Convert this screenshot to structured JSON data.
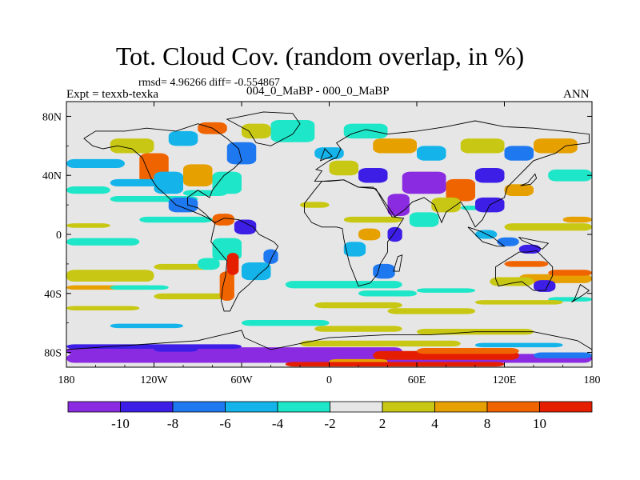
{
  "title": "Tot. Cloud Cov. (random overlap, in %)",
  "stats": "rmsd= 4.96266 diff= -0.554867",
  "left_label": "Expt = texxb-texka",
  "center_label": "004_0_MaBP - 000_0_MaBP",
  "right_label": "ANN",
  "map": {
    "lon_ticks": [
      {
        "lon": -180,
        "label": "180"
      },
      {
        "lon": -120,
        "label": "120W"
      },
      {
        "lon": -60,
        "label": "60W"
      },
      {
        "lon": 0,
        "label": "0"
      },
      {
        "lon": 60,
        "label": "60E"
      },
      {
        "lon": 120,
        "label": "120E"
      },
      {
        "lon": 180,
        "label": "180"
      }
    ],
    "lat_ticks": [
      {
        "lat": 80,
        "label": "80N"
      },
      {
        "lat": 40,
        "label": "40N"
      },
      {
        "lat": 0,
        "label": "0"
      },
      {
        "lat": -40,
        "label": "40S"
      },
      {
        "lat": -80,
        "label": "80S"
      }
    ],
    "lat_range": [
      -90,
      90
    ],
    "lon_range": [
      -180,
      180
    ],
    "background_color": "#e6e6e6"
  },
  "colorbar": {
    "colors": [
      "#8a2be2",
      "#3c1ee6",
      "#1e78f0",
      "#14b4eb",
      "#1ee6c8",
      "#e6e6e6",
      "#c8c814",
      "#e6a000",
      "#f06400",
      "#e61e00"
    ],
    "labels": [
      "-10",
      "-8",
      "-6",
      "-4",
      "-2",
      "2",
      "4",
      "8",
      "10"
    ]
  },
  "fields": [
    {
      "lon": -180,
      "lat": -84,
      "w": 360,
      "h": 6,
      "level": 1
    },
    {
      "lon": -180,
      "lat": -79,
      "w": 230,
      "h": 5,
      "level": 1
    },
    {
      "lon": -180,
      "lat": -76,
      "w": 120,
      "h": 3,
      "level": 2
    },
    {
      "lon": -120,
      "lat": -78,
      "w": 30,
      "h": 3,
      "level": 2
    },
    {
      "lon": 30,
      "lat": -82,
      "w": 100,
      "h": 6,
      "level": 10
    },
    {
      "lon": 60,
      "lat": -79,
      "w": 70,
      "h": 4,
      "level": 9
    },
    {
      "lon": 0,
      "lat": -86,
      "w": 40,
      "h": 3,
      "level": 8
    },
    {
      "lon": -30,
      "lat": -88,
      "w": 150,
      "h": 3,
      "level": 10
    },
    {
      "lon": -20,
      "lat": -74,
      "w": 110,
      "h": 4,
      "level": 7
    },
    {
      "lon": 100,
      "lat": -75,
      "w": 60,
      "h": 3,
      "level": 4
    },
    {
      "lon": 140,
      "lat": -82,
      "w": 40,
      "h": 4,
      "level": 3
    },
    {
      "lon": -10,
      "lat": -64,
      "w": 60,
      "h": 4,
      "level": 7
    },
    {
      "lon": 60,
      "lat": -66,
      "w": 80,
      "h": 4,
      "level": 7
    },
    {
      "lon": -150,
      "lat": -62,
      "w": 50,
      "h": 3,
      "level": 4
    },
    {
      "lon": -180,
      "lat": -28,
      "w": 60,
      "h": 8,
      "level": 7
    },
    {
      "lon": -180,
      "lat": -36,
      "w": 60,
      "h": 3,
      "level": 8
    },
    {
      "lon": -120,
      "lat": -22,
      "w": 40,
      "h": 4,
      "level": 7
    },
    {
      "lon": 130,
      "lat": -30,
      "w": 50,
      "h": 6,
      "level": 8
    },
    {
      "lon": 110,
      "lat": -32,
      "w": 30,
      "h": 6,
      "level": 7
    },
    {
      "lon": 150,
      "lat": -26,
      "w": 30,
      "h": 4,
      "level": 9
    },
    {
      "lon": 120,
      "lat": -20,
      "w": 30,
      "h": 4,
      "level": 9
    },
    {
      "lon": 150,
      "lat": -44,
      "w": 30,
      "h": 3,
      "level": 5
    },
    {
      "lon": 100,
      "lat": -46,
      "w": 60,
      "h": 3,
      "level": 7
    },
    {
      "lon": -120,
      "lat": -42,
      "w": 50,
      "h": 4,
      "level": 7
    },
    {
      "lon": -180,
      "lat": -50,
      "w": 50,
      "h": 3,
      "level": 7
    },
    {
      "lon": -30,
      "lat": -34,
      "w": 80,
      "h": 5,
      "level": 5
    },
    {
      "lon": -10,
      "lat": -48,
      "w": 60,
      "h": 4,
      "level": 7
    },
    {
      "lon": 40,
      "lat": -52,
      "w": 60,
      "h": 4,
      "level": 7
    },
    {
      "lon": -60,
      "lat": -60,
      "w": 60,
      "h": 4,
      "level": 5
    },
    {
      "lon": 20,
      "lat": -40,
      "w": 40,
      "h": 4,
      "level": 5
    },
    {
      "lon": 60,
      "lat": -38,
      "w": 40,
      "h": 3,
      "level": 5
    },
    {
      "lon": -150,
      "lat": -36,
      "w": 40,
      "h": 3,
      "level": 5
    },
    {
      "lon": -180,
      "lat": -5,
      "w": 50,
      "h": 5,
      "level": 5
    },
    {
      "lon": -180,
      "lat": 6,
      "w": 30,
      "h": 3,
      "level": 7
    },
    {
      "lon": -130,
      "lat": 10,
      "w": 50,
      "h": 4,
      "level": 5
    },
    {
      "lon": -150,
      "lat": 24,
      "w": 60,
      "h": 4,
      "level": 5
    },
    {
      "lon": -100,
      "lat": 28,
      "w": 30,
      "h": 4,
      "level": 5
    },
    {
      "lon": -20,
      "lat": 20,
      "w": 20,
      "h": 4,
      "level": 7
    },
    {
      "lon": 10,
      "lat": 10,
      "w": 40,
      "h": 4,
      "level": 7
    },
    {
      "lon": 120,
      "lat": 5,
      "w": 60,
      "h": 5,
      "level": 7
    },
    {
      "lon": 160,
      "lat": 10,
      "w": 20,
      "h": 4,
      "level": 8
    },
    {
      "lon": 90,
      "lat": 18,
      "w": 30,
      "h": 3,
      "level": 5
    },
    {
      "lon": -80,
      "lat": -10,
      "w": 20,
      "h": 15,
      "level": 5
    },
    {
      "lon": -60,
      "lat": -25,
      "w": 20,
      "h": 12,
      "level": 4
    },
    {
      "lon": -75,
      "lat": -35,
      "w": 10,
      "h": 20,
      "level": 9
    },
    {
      "lon": -70,
      "lat": -20,
      "w": 8,
      "h": 15,
      "level": 10
    },
    {
      "lon": -65,
      "lat": 5,
      "w": 15,
      "h": 10,
      "level": 2
    },
    {
      "lon": -80,
      "lat": 10,
      "w": 15,
      "h": 8,
      "level": 9
    },
    {
      "lon": -45,
      "lat": -15,
      "w": 10,
      "h": 10,
      "level": 3
    },
    {
      "lon": -90,
      "lat": -20,
      "w": 15,
      "h": 8,
      "level": 5
    },
    {
      "lon": -130,
      "lat": 45,
      "w": 20,
      "h": 20,
      "level": 9
    },
    {
      "lon": -120,
      "lat": 35,
      "w": 20,
      "h": 15,
      "level": 4
    },
    {
      "lon": -110,
      "lat": 20,
      "w": 20,
      "h": 10,
      "level": 3
    },
    {
      "lon": -100,
      "lat": 40,
      "w": 20,
      "h": 15,
      "level": 8
    },
    {
      "lon": -80,
      "lat": 35,
      "w": 20,
      "h": 15,
      "level": 5
    },
    {
      "lon": -70,
      "lat": 55,
      "w": 20,
      "h": 15,
      "level": 3
    },
    {
      "lon": -150,
      "lat": 60,
      "w": 30,
      "h": 10,
      "level": 7
    },
    {
      "lon": -60,
      "lat": 70,
      "w": 20,
      "h": 10,
      "level": 7
    },
    {
      "lon": -90,
      "lat": 72,
      "w": 20,
      "h": 8,
      "level": 9
    },
    {
      "lon": -110,
      "lat": 65,
      "w": 20,
      "h": 10,
      "level": 4
    },
    {
      "lon": -40,
      "lat": 70,
      "w": 30,
      "h": 15,
      "level": 5
    },
    {
      "lon": -150,
      "lat": 35,
      "w": 40,
      "h": 5,
      "level": 4
    },
    {
      "lon": -180,
      "lat": 30,
      "w": 30,
      "h": 5,
      "level": 5
    },
    {
      "lon": -180,
      "lat": 48,
      "w": 40,
      "h": 6,
      "level": 4
    },
    {
      "lon": 0,
      "lat": 45,
      "w": 20,
      "h": 10,
      "level": 7
    },
    {
      "lon": 20,
      "lat": 40,
      "w": 20,
      "h": 10,
      "level": 2
    },
    {
      "lon": 50,
      "lat": 35,
      "w": 30,
      "h": 15,
      "level": 1
    },
    {
      "lon": 80,
      "lat": 30,
      "w": 20,
      "h": 15,
      "level": 9
    },
    {
      "lon": 100,
      "lat": 40,
      "w": 20,
      "h": 10,
      "level": 2
    },
    {
      "lon": 30,
      "lat": 60,
      "w": 30,
      "h": 10,
      "level": 8
    },
    {
      "lon": 60,
      "lat": 55,
      "w": 20,
      "h": 10,
      "level": 4
    },
    {
      "lon": 90,
      "lat": 60,
      "w": 30,
      "h": 10,
      "level": 7
    },
    {
      "lon": 120,
      "lat": 55,
      "w": 20,
      "h": 10,
      "level": 3
    },
    {
      "lon": 140,
      "lat": 60,
      "w": 30,
      "h": 10,
      "level": 8
    },
    {
      "lon": 40,
      "lat": 20,
      "w": 15,
      "h": 15,
      "level": 1
    },
    {
      "lon": 55,
      "lat": 10,
      "w": 20,
      "h": 10,
      "level": 5
    },
    {
      "lon": 70,
      "lat": 20,
      "w": 20,
      "h": 10,
      "level": 7
    },
    {
      "lon": 100,
      "lat": 20,
      "w": 20,
      "h": 10,
      "level": 2
    },
    {
      "lon": 120,
      "lat": 30,
      "w": 20,
      "h": 8,
      "level": 8
    },
    {
      "lon": 10,
      "lat": 70,
      "w": 30,
      "h": 10,
      "level": 5
    },
    {
      "lon": -10,
      "lat": 55,
      "w": 20,
      "h": 8,
      "level": 4
    },
    {
      "lon": 150,
      "lat": 40,
      "w": 30,
      "h": 8,
      "level": 5
    },
    {
      "lon": 10,
      "lat": -10,
      "w": 15,
      "h": 10,
      "level": 4
    },
    {
      "lon": 30,
      "lat": -25,
      "w": 15,
      "h": 10,
      "level": 3
    },
    {
      "lon": 40,
      "lat": 0,
      "w": 10,
      "h": 10,
      "level": 2
    },
    {
      "lon": 20,
      "lat": 0,
      "w": 15,
      "h": 8,
      "level": 8
    },
    {
      "lon": 130,
      "lat": -10,
      "w": 15,
      "h": 6,
      "level": 2
    },
    {
      "lon": 115,
      "lat": -5,
      "w": 15,
      "h": 6,
      "level": 3
    },
    {
      "lon": 140,
      "lat": -35,
      "w": 15,
      "h": 8,
      "level": 2
    },
    {
      "lon": 100,
      "lat": 0,
      "w": 15,
      "h": 6,
      "level": 4
    }
  ],
  "continents": [
    [
      [
        -168,
        65
      ],
      [
        -160,
        70
      ],
      [
        -140,
        70
      ],
      [
        -125,
        72
      ],
      [
        -105,
        70
      ],
      [
        -90,
        75
      ],
      [
        -80,
        72
      ],
      [
        -70,
        65
      ],
      [
        -62,
        58
      ],
      [
        -60,
        50
      ],
      [
        -65,
        45
      ],
      [
        -72,
        40
      ],
      [
        -76,
        35
      ],
      [
        -80,
        30
      ],
      [
        -82,
        25
      ],
      [
        -90,
        30
      ],
      [
        -97,
        25
      ],
      [
        -97,
        20
      ],
      [
        -90,
        18
      ],
      [
        -85,
        14
      ],
      [
        -80,
        9
      ],
      [
        -78,
        8
      ],
      [
        -85,
        12
      ],
      [
        -92,
        15
      ],
      [
        -105,
        20
      ],
      [
        -110,
        25
      ],
      [
        -118,
        32
      ],
      [
        -122,
        38
      ],
      [
        -125,
        45
      ],
      [
        -128,
        52
      ],
      [
        -135,
        58
      ],
      [
        -145,
        60
      ],
      [
        -155,
        58
      ],
      [
        -162,
        60
      ],
      [
        -168,
        65
      ]
    ],
    [
      [
        -78,
        8
      ],
      [
        -72,
        11
      ],
      [
        -62,
        10
      ],
      [
        -52,
        5
      ],
      [
        -48,
        0
      ],
      [
        -38,
        -5
      ],
      [
        -35,
        -8
      ],
      [
        -39,
        -15
      ],
      [
        -42,
        -22
      ],
      [
        -48,
        -27
      ],
      [
        -55,
        -34
      ],
      [
        -62,
        -40
      ],
      [
        -65,
        -46
      ],
      [
        -68,
        -52
      ],
      [
        -72,
        -52
      ],
      [
        -74,
        -45
      ],
      [
        -73,
        -36
      ],
      [
        -71,
        -28
      ],
      [
        -70,
        -18
      ],
      [
        -75,
        -12
      ],
      [
        -81,
        -5
      ],
      [
        -80,
        0
      ],
      [
        -78,
        8
      ]
    ],
    [
      [
        -50,
        62
      ],
      [
        -40,
        60
      ],
      [
        -25,
        68
      ],
      [
        -20,
        75
      ],
      [
        -25,
        82
      ],
      [
        -45,
        83
      ],
      [
        -60,
        80
      ],
      [
        -70,
        78
      ],
      [
        -55,
        70
      ],
      [
        -50,
        62
      ]
    ],
    [
      [
        -10,
        36
      ],
      [
        -5,
        43
      ],
      [
        -9,
        44
      ],
      [
        0,
        50
      ],
      [
        5,
        52
      ],
      [
        8,
        58
      ],
      [
        5,
        62
      ],
      [
        15,
        68
      ],
      [
        25,
        71
      ],
      [
        40,
        68
      ],
      [
        60,
        70
      ],
      [
        80,
        73
      ],
      [
        100,
        77
      ],
      [
        120,
        73
      ],
      [
        140,
        72
      ],
      [
        160,
        70
      ],
      [
        178,
        68
      ],
      [
        178,
        62
      ],
      [
        162,
        60
      ],
      [
        155,
        55
      ],
      [
        140,
        50
      ],
      [
        135,
        45
      ],
      [
        128,
        38
      ],
      [
        122,
        32
      ],
      [
        120,
        25
      ],
      [
        110,
        20
      ],
      [
        105,
        10
      ],
      [
        100,
        5
      ],
      [
        95,
        15
      ],
      [
        90,
        22
      ],
      [
        80,
        15
      ],
      [
        77,
        8
      ],
      [
        72,
        20
      ],
      [
        65,
        25
      ],
      [
        57,
        22
      ],
      [
        52,
        17
      ],
      [
        45,
        12
      ],
      [
        43,
        15
      ],
      [
        38,
        22
      ],
      [
        34,
        28
      ],
      [
        30,
        32
      ],
      [
        20,
        32
      ],
      [
        10,
        37
      ],
      [
        0,
        36
      ],
      [
        -5,
        36
      ],
      [
        -10,
        36
      ]
    ],
    [
      [
        -17,
        21
      ],
      [
        -17,
        15
      ],
      [
        -12,
        8
      ],
      [
        -5,
        5
      ],
      [
        5,
        5
      ],
      [
        9,
        4
      ],
      [
        10,
        -3
      ],
      [
        12,
        -12
      ],
      [
        14,
        -20
      ],
      [
        18,
        -30
      ],
      [
        20,
        -35
      ],
      [
        28,
        -33
      ],
      [
        33,
        -27
      ],
      [
        35,
        -20
      ],
      [
        40,
        -12
      ],
      [
        40,
        -5
      ],
      [
        44,
        0
      ],
      [
        51,
        11
      ],
      [
        43,
        12
      ],
      [
        38,
        20
      ],
      [
        32,
        31
      ],
      [
        20,
        32
      ],
      [
        10,
        37
      ],
      [
        -5,
        36
      ],
      [
        -10,
        30
      ],
      [
        -17,
        21
      ]
    ],
    [
      [
        114,
        -22
      ],
      [
        114,
        -30
      ],
      [
        116,
        -35
      ],
      [
        125,
        -33
      ],
      [
        132,
        -32
      ],
      [
        140,
        -38
      ],
      [
        148,
        -38
      ],
      [
        153,
        -28
      ],
      [
        153,
        -22
      ],
      [
        145,
        -14
      ],
      [
        142,
        -11
      ],
      [
        136,
        -12
      ],
      [
        130,
        -12
      ],
      [
        122,
        -17
      ],
      [
        114,
        -22
      ]
    ],
    [
      [
        44,
        -25
      ],
      [
        47,
        -15
      ],
      [
        50,
        -14
      ],
      [
        48,
        -25
      ],
      [
        44,
        -25
      ]
    ],
    [
      [
        -180,
        -78
      ],
      [
        -150,
        -76
      ],
      [
        -120,
        -74
      ],
      [
        -90,
        -72
      ],
      [
        -60,
        -65
      ],
      [
        -58,
        -70
      ],
      [
        -40,
        -78
      ],
      [
        0,
        -70
      ],
      [
        40,
        -68
      ],
      [
        70,
        -68
      ],
      [
        100,
        -66
      ],
      [
        140,
        -66
      ],
      [
        170,
        -72
      ],
      [
        180,
        -78
      ],
      [
        180,
        -90
      ],
      [
        -180,
        -90
      ],
      [
        -180,
        -78
      ]
    ],
    [
      [
        95,
        5
      ],
      [
        105,
        -5
      ],
      [
        115,
        -8
      ],
      [
        120,
        -8
      ],
      [
        112,
        -2
      ],
      [
        104,
        2
      ],
      [
        95,
        5
      ]
    ],
    [
      [
        130,
        -2
      ],
      [
        150,
        -6
      ],
      [
        146,
        -10
      ],
      [
        132,
        -4
      ],
      [
        130,
        -2
      ]
    ],
    [
      [
        131,
        33
      ],
      [
        136,
        35
      ],
      [
        141,
        41
      ],
      [
        142,
        38
      ],
      [
        138,
        34
      ],
      [
        131,
        33
      ]
    ],
    [
      [
        166,
        -46
      ],
      [
        174,
        -41
      ],
      [
        178,
        -38
      ],
      [
        172,
        -34
      ],
      [
        168,
        -44
      ],
      [
        166,
        -46
      ]
    ],
    [
      [
        -6,
        50
      ],
      [
        -3,
        58
      ],
      [
        2,
        53
      ],
      [
        -6,
        50
      ]
    ]
  ]
}
